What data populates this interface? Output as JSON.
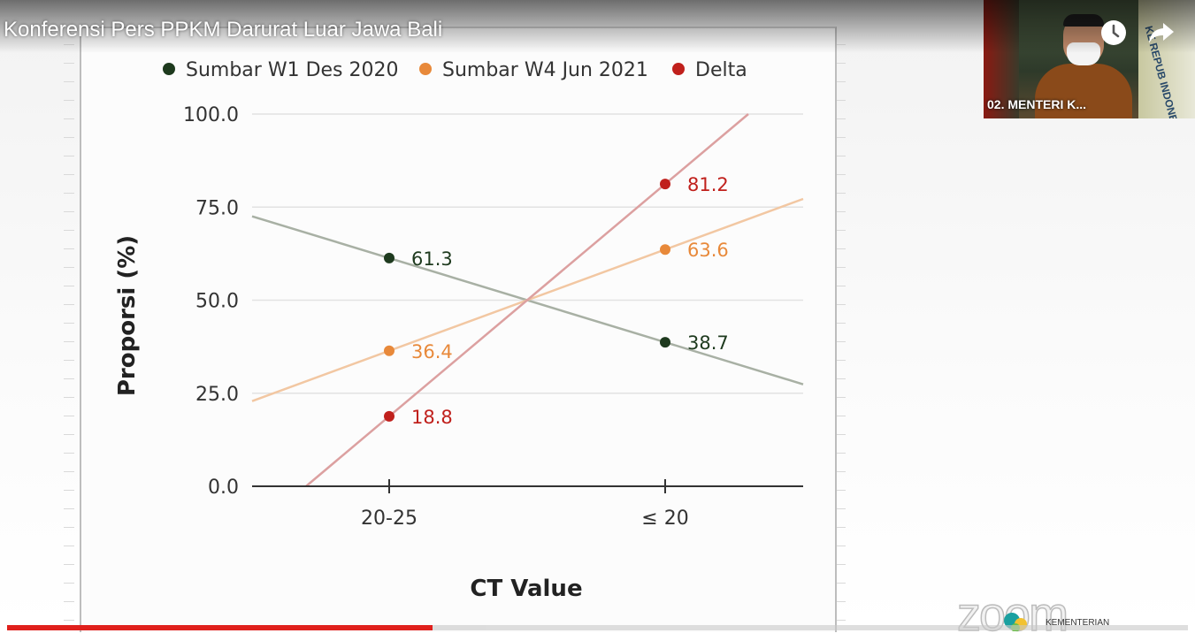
{
  "video": {
    "title": "Konferensi Pers PPKM Darurat Luar Jawa Bali",
    "progress_played_fraction": 0.36,
    "progress_buffered_fraction": 0.405
  },
  "pip": {
    "speaker_label": "02. MENTERI K...",
    "flag_text": "KE REPUB INDONESI"
  },
  "controls": {
    "watch_later_icon": "clock-icon",
    "share_icon": "share-arrow-icon"
  },
  "watermark": {
    "zoom_text": "zoom",
    "kementerian_text": "KEMENTERIAN"
  },
  "chart_data": {
    "type": "line",
    "categories": [
      "20-25",
      "≤ 20"
    ],
    "series": [
      {
        "name": "Sumbar W1 Des 2020",
        "color": "#1e3a1e",
        "line_color": "#a8b0a4",
        "values": [
          61.3,
          38.7
        ],
        "labels": [
          "61.3",
          "38.7"
        ]
      },
      {
        "name": "Sumbar W4 Jun 2021",
        "color": "#e8893a",
        "line_color": "#f2c7a2",
        "values": [
          36.4,
          63.6
        ],
        "labels": [
          "36.4",
          "63.6"
        ]
      },
      {
        "name": "Delta",
        "color": "#c0201c",
        "line_color": "#dca0a0",
        "values": [
          18.8,
          81.2
        ],
        "labels": [
          "18.8",
          "81.2"
        ]
      }
    ],
    "xlabel": "CT Value",
    "ylabel": "Proporsi (%)",
    "ylim": [
      0,
      100
    ],
    "yticks": [
      "0.0",
      "25.0",
      "50.0",
      "75.0",
      "100.0"
    ],
    "ytick_values": [
      0,
      25,
      50,
      75,
      100
    ],
    "grid": true,
    "legend_position": "top"
  }
}
